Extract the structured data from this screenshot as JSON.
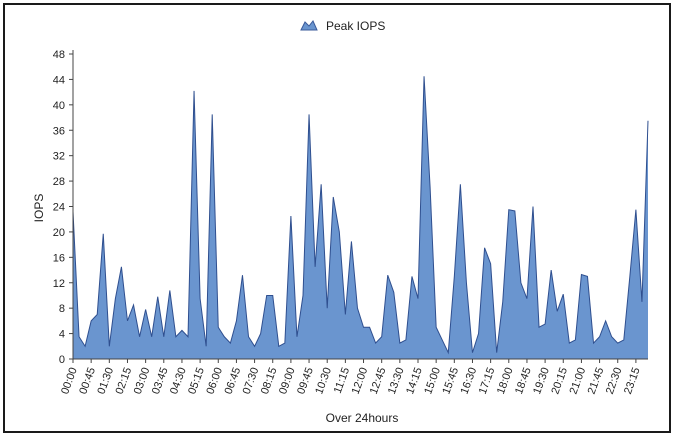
{
  "chart_data": {
    "type": "area",
    "title": "",
    "legend": {
      "placement": "top-center"
    },
    "xlabel": "Over 24hours",
    "ylabel": "IOPS",
    "ylim": [
      0,
      48
    ],
    "yticks": [
      0,
      4,
      8,
      12,
      16,
      20,
      24,
      28,
      32,
      36,
      40,
      44,
      48
    ],
    "grid": false,
    "color": "#6a95cf",
    "x_tick_labels": [
      "00:00",
      "00:45",
      "01:30",
      "02:15",
      "03:00",
      "03:45",
      "04:30",
      "05:15",
      "06:00",
      "06:45",
      "07:30",
      "08:15",
      "09:00",
      "09:45",
      "10:30",
      "11:15",
      "12:00",
      "12:45",
      "13:30",
      "14:15",
      "15:00",
      "15:45",
      "16:30",
      "17:15",
      "18:00",
      "18:45",
      "19:30",
      "20:15",
      "21:00",
      "21:45",
      "22:30",
      "23:15"
    ],
    "x_tick_step": 3,
    "series": [
      {
        "name": "Peak IOPS",
        "values": [
          23.2,
          3.5,
          2,
          6,
          7,
          19.7,
          2,
          9.5,
          14.5,
          6,
          8.5,
          3.5,
          7.8,
          3.5,
          9.8,
          3.5,
          10.8,
          3.5,
          4.5,
          3.5,
          42.2,
          9.5,
          2,
          38.5,
          5,
          3.5,
          2.5,
          6,
          13.2,
          3.5,
          2,
          4,
          10,
          10,
          2,
          2.5,
          22.5,
          3.5,
          10,
          38.5,
          14.5,
          27.5,
          8,
          25.5,
          20,
          7,
          18.5,
          8,
          5,
          5,
          2.5,
          3.5,
          13.2,
          10.5,
          2.5,
          3,
          13,
          9.5,
          44.5,
          27,
          5,
          3,
          1,
          13,
          27.5,
          12,
          1,
          4,
          17.5,
          15,
          1,
          9,
          23.5,
          23.3,
          12,
          9.5,
          24,
          5,
          5.5,
          14,
          7.5,
          10.2,
          2.5,
          3,
          13.3,
          13,
          2.5,
          3.5,
          6,
          3.5,
          2.5,
          3,
          13,
          23.5,
          9,
          37.5
        ]
      }
    ]
  }
}
